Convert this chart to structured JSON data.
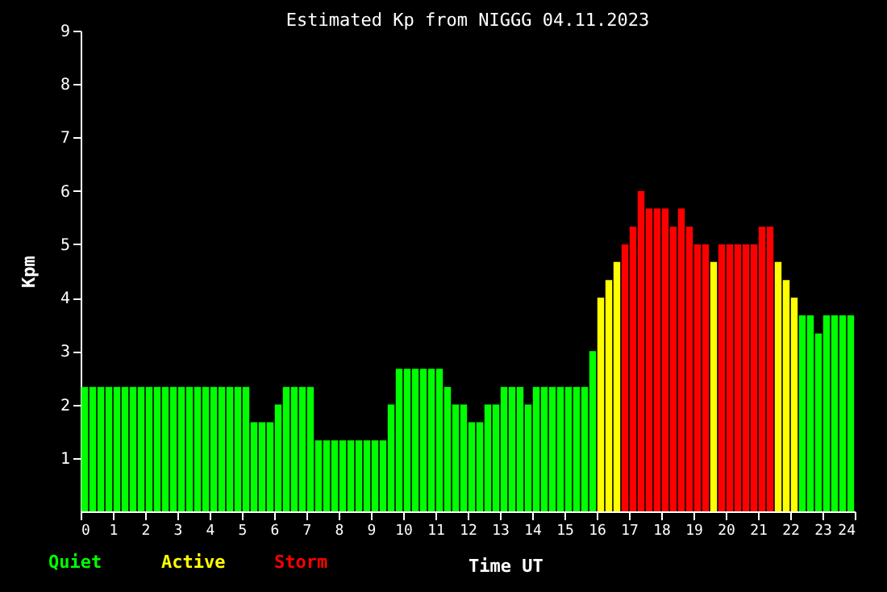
{
  "chart_data": {
    "type": "bar",
    "title": "Estimated Kp from NIGGG 04.11.2023",
    "xlabel": "Time UT",
    "ylabel": "Kpm",
    "xlim": [
      0,
      24
    ],
    "xticks": [
      0,
      1,
      2,
      3,
      4,
      5,
      6,
      7,
      8,
      9,
      10,
      11,
      12,
      13,
      14,
      15,
      16,
      17,
      18,
      19,
      20,
      21,
      22,
      23,
      24
    ],
    "ylim": [
      0,
      9
    ],
    "yticks": [
      1,
      2,
      3,
      4,
      5,
      6,
      7,
      8,
      9
    ],
    "grid": false,
    "legend": "bottom left",
    "series": [
      {
        "name": "Quiet",
        "color": "#00ff00",
        "x": [
          0,
          0.25,
          0.5,
          0.75,
          1,
          1.25,
          1.5,
          1.75,
          2,
          2.25,
          2.5,
          2.75,
          3,
          3.25,
          3.5,
          3.75,
          4,
          4.25,
          4.5,
          4.75,
          5,
          5.25,
          5.5,
          5.75,
          6,
          6.25,
          6.5,
          6.75,
          7,
          7.25,
          7.5,
          7.75,
          8,
          8.25,
          8.5,
          8.75,
          9,
          9.25,
          9.5,
          9.75,
          10,
          10.25,
          10.5,
          10.75,
          11,
          11.25,
          11.5,
          11.75,
          12,
          12.25,
          12.5,
          12.75,
          13,
          13.25,
          13.5,
          13.75,
          14,
          14.25,
          14.5,
          14.75,
          15,
          15.25,
          15.5,
          15.75,
          22.25,
          22.5,
          22.75,
          23,
          23.25,
          23.5,
          23.75
        ],
        "values": [
          2.33,
          2.33,
          2.33,
          2.33,
          2.33,
          2.33,
          2.33,
          2.33,
          2.33,
          2.33,
          2.33,
          2.33,
          2.33,
          2.33,
          2.33,
          2.33,
          2.33,
          2.33,
          2.33,
          2.33,
          2.33,
          1.67,
          1.67,
          1.67,
          2,
          2.33,
          2.33,
          2.33,
          2.33,
          1.33,
          1.33,
          1.33,
          1.33,
          1.33,
          1.33,
          1.33,
          1.33,
          1.33,
          2,
          2.67,
          2.67,
          2.67,
          2.67,
          2.67,
          2.67,
          2.33,
          2,
          2,
          1.67,
          1.67,
          2,
          2,
          2.33,
          2.33,
          2.33,
          2,
          2.33,
          2.33,
          2.33,
          2.33,
          2.33,
          2.33,
          2.33,
          3,
          3.67,
          3.67,
          3.33,
          3.67,
          3.67,
          3.67,
          3.67
        ]
      },
      {
        "name": "Active",
        "color": "#ffff00",
        "x": [
          16,
          16.25,
          16.5,
          19.5,
          21.5,
          21.75,
          22
        ],
        "values": [
          4,
          4.33,
          4.67,
          4.67,
          4.67,
          4.33,
          4
        ]
      },
      {
        "name": "Storm",
        "color": "#ff0000",
        "x": [
          16.75,
          17,
          17.25,
          17.5,
          17.75,
          18,
          18.25,
          18.5,
          18.75,
          19,
          19.25,
          19.75,
          20,
          20.25,
          20.5,
          20.75,
          21,
          21.25
        ],
        "values": [
          5,
          5.33,
          6,
          5.67,
          5.67,
          5.67,
          5.33,
          5.67,
          5.33,
          5,
          5,
          5,
          5,
          5,
          5,
          5,
          5.33,
          5.33
        ]
      }
    ]
  }
}
